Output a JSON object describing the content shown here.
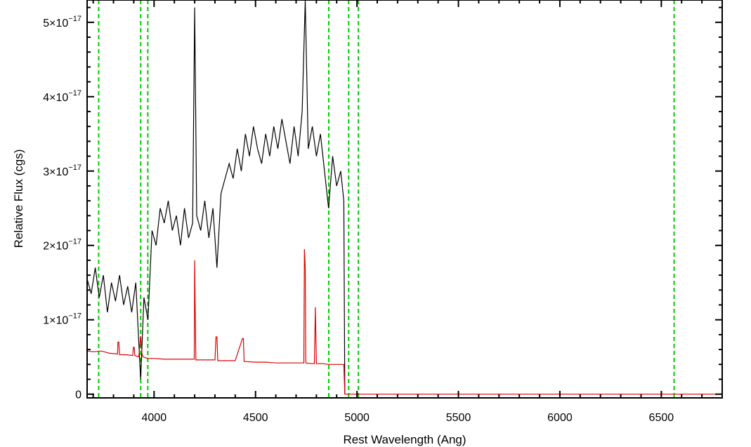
{
  "chart_data": {
    "type": "line",
    "xlabel": "Rest Wavelength (Ang)",
    "ylabel": "Relative Flux (cgs)",
    "xlim": [
      3670,
      6800
    ],
    "ylim": [
      -5e-19,
      5.3e-17
    ],
    "x_ticks": [
      4000,
      4500,
      5000,
      5500,
      6000,
      6500
    ],
    "x_tick_labels": [
      "4000",
      "4500",
      "5000",
      "5500",
      "6000",
      "6500"
    ],
    "y_ticks": [
      0,
      1e-17,
      2e-17,
      3e-17,
      4e-17,
      5e-17
    ],
    "y_tick_labels": [
      {
        "mantissa": "0",
        "exponent": ""
      },
      {
        "mantissa": "1×10",
        "exponent": "−17"
      },
      {
        "mantissa": "2×10",
        "exponent": "−17"
      },
      {
        "mantissa": "3×10",
        "exponent": "−17"
      },
      {
        "mantissa": "4×10",
        "exponent": "−17"
      },
      {
        "mantissa": "5×10",
        "exponent": "−17"
      }
    ],
    "grid": false,
    "vertical_lines": {
      "style": "dashed",
      "color": "#00cc00",
      "x": [
        3727,
        3934,
        3969,
        4861,
        4959,
        5007,
        6563
      ]
    },
    "series": [
      {
        "color": "#000000",
        "x": [
          3670,
          3690,
          3710,
          3730,
          3750,
          3770,
          3790,
          3810,
          3830,
          3850,
          3870,
          3890,
          3910,
          3934,
          3950,
          3970,
          3990,
          4010,
          4030,
          4050,
          4070,
          4090,
          4110,
          4130,
          4150,
          4170,
          4190,
          4200,
          4210,
          4230,
          4250,
          4270,
          4290,
          4310,
          4330,
          4350,
          4370,
          4390,
          4410,
          4430,
          4450,
          4470,
          4490,
          4510,
          4530,
          4550,
          4570,
          4590,
          4610,
          4630,
          4650,
          4670,
          4690,
          4710,
          4730,
          4745,
          4760,
          4780,
          4800,
          4820,
          4840,
          4860,
          4880,
          4900,
          4920,
          4935,
          4940
        ],
        "y": [
          1.55e-17,
          1.35e-17,
          1.7e-17,
          1.3e-17,
          1.6e-17,
          1.1e-17,
          1.5e-17,
          1.25e-17,
          1.6e-17,
          1.2e-17,
          1.45e-17,
          1.1e-17,
          1.5e-17,
          2e-18,
          1.3e-17,
          1e-17,
          2.2e-17,
          2e-17,
          2.5e-17,
          2.3e-17,
          2.6e-17,
          2.2e-17,
          2.4e-17,
          2e-17,
          2.5e-17,
          2.1e-17,
          2.3e-17,
          5.2e-17,
          2.4e-17,
          2.2e-17,
          2.6e-17,
          2.1e-17,
          2.5e-17,
          1.7e-17,
          2.7e-17,
          2.9e-17,
          3.1e-17,
          2.9e-17,
          3.3e-17,
          3e-17,
          3.5e-17,
          3.2e-17,
          3.6e-17,
          3.3e-17,
          3.1e-17,
          3.5e-17,
          3.2e-17,
          3.6e-17,
          3.3e-17,
          3.7e-17,
          3.4e-17,
          3.1e-17,
          3.6e-17,
          3.2e-17,
          3.8e-17,
          5.3e-17,
          3.3e-17,
          3.6e-17,
          3.2e-17,
          3.5e-17,
          3e-17,
          2.5e-17,
          3.2e-17,
          2.8e-17,
          3e-17,
          2.6e-17,
          0.0
        ]
      },
      {
        "color": "#dd0000",
        "x": [
          3670,
          3700,
          3740,
          3780,
          3820,
          3822,
          3826,
          3830,
          3860,
          3895,
          3898,
          3902,
          3905,
          3925,
          3934,
          3940,
          3945,
          3970,
          4000,
          4050,
          4100,
          4150,
          4198,
          4200,
          4202,
          4206,
          4250,
          4300,
          4305,
          4310,
          4314,
          4350,
          4400,
          4436,
          4440,
          4444,
          4500,
          4550,
          4600,
          4650,
          4700,
          4738,
          4741,
          4745,
          4748,
          4775,
          4790,
          4795,
          4800,
          4830,
          4860,
          4880,
          4900,
          4920,
          4935,
          4940,
          4950,
          5200,
          5600,
          6000,
          6400,
          6800
        ],
        "y": [
          5.8e-18,
          5.7e-18,
          5.8e-18,
          5.5e-18,
          5.4e-18,
          7e-18,
          7e-18,
          5.3e-18,
          5.3e-18,
          5.2e-18,
          6.3e-18,
          6.3e-18,
          5.2e-18,
          5e-18,
          7.8e-18,
          5.5e-18,
          5e-18,
          4.8e-18,
          4.8e-18,
          4.7e-18,
          4.7e-18,
          4.7e-18,
          4.7e-18,
          1.8e-17,
          1.3e-17,
          4.6e-18,
          4.6e-18,
          4.6e-18,
          7.7e-18,
          7.7e-18,
          4.5e-18,
          4.5e-18,
          4.5e-18,
          7.5e-18,
          7.5e-18,
          4.4e-18,
          4.3e-18,
          4.3e-18,
          4.2e-18,
          4.2e-18,
          4.2e-18,
          4.2e-18,
          1.95e-17,
          1.7e-17,
          4.2e-18,
          4.1e-18,
          4.1e-18,
          1.17e-17,
          4.1e-18,
          4.1e-18,
          4e-18,
          4e-18,
          4e-18,
          4e-18,
          4e-18,
          0.0,
          0.0,
          0.0,
          0.0,
          0.0,
          0.0,
          0.0
        ]
      }
    ]
  }
}
